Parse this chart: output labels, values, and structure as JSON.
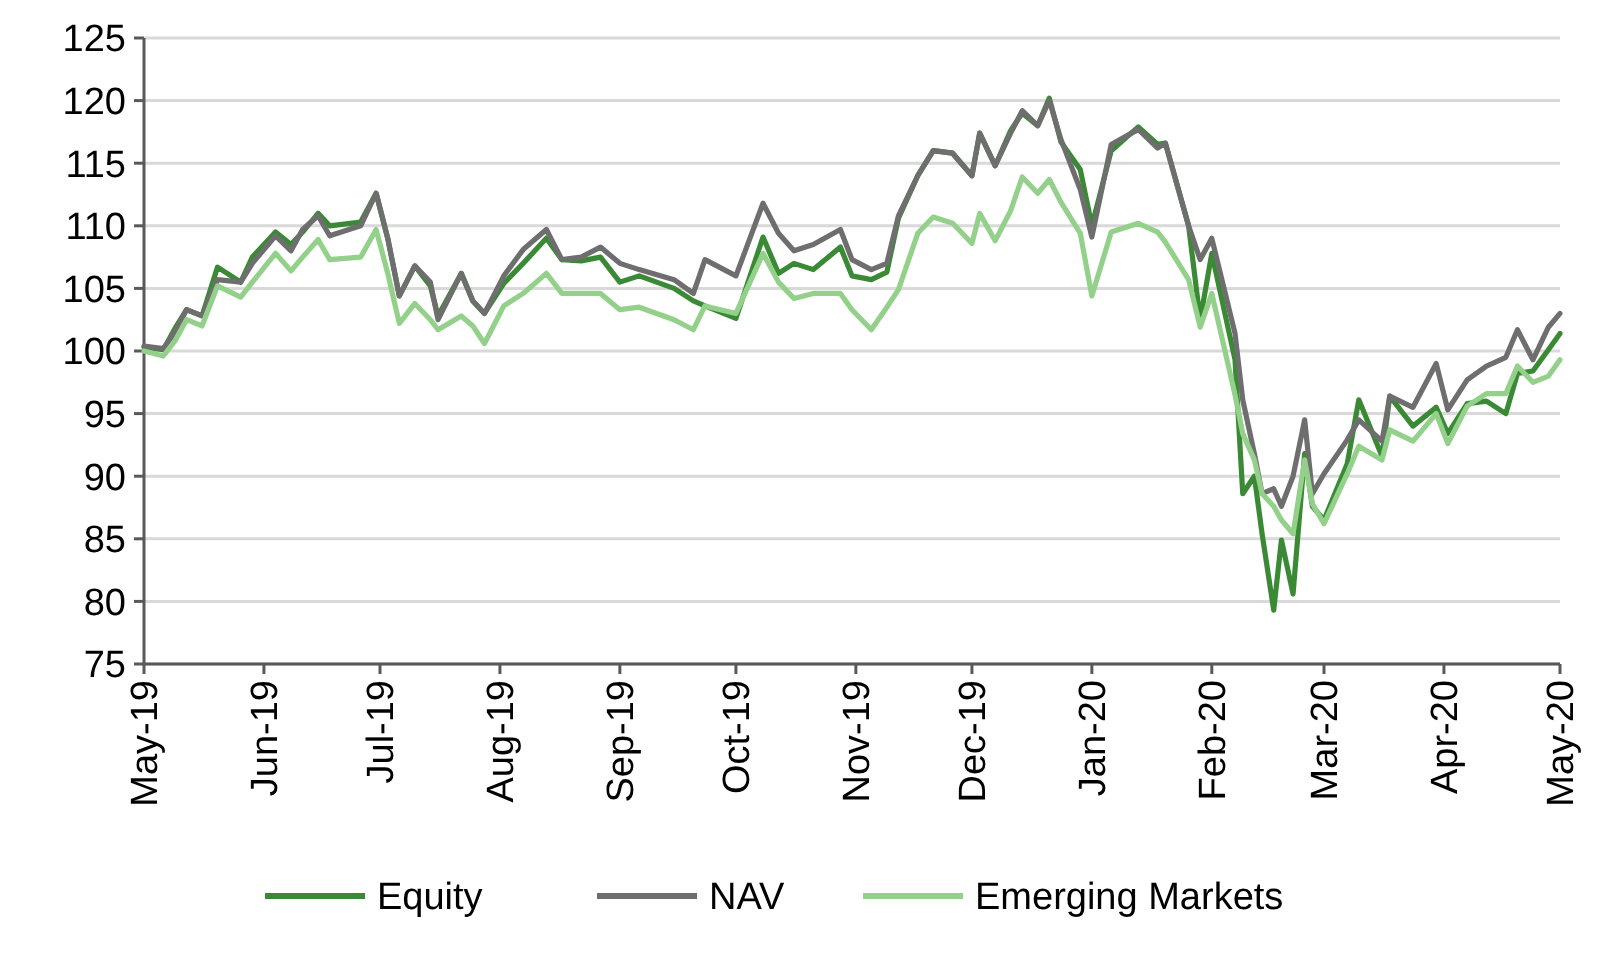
{
  "chart_data": {
    "type": "line",
    "x": [
      "2019-05-01",
      "2019-05-06",
      "2019-05-09",
      "2019-05-12",
      "2019-05-16",
      "2019-05-20",
      "2019-05-26",
      "2019-05-29",
      "2019-06-04",
      "2019-06-08",
      "2019-06-11",
      "2019-06-15",
      "2019-06-18",
      "2019-06-26",
      "2019-06-30",
      "2019-07-03",
      "2019-07-06",
      "2019-07-10",
      "2019-07-14",
      "2019-07-16",
      "2019-07-22",
      "2019-07-25",
      "2019-07-28",
      "2019-08-02",
      "2019-08-07",
      "2019-08-13",
      "2019-08-17",
      "2019-08-22",
      "2019-08-27",
      "2019-09-01",
      "2019-09-06",
      "2019-09-15",
      "2019-09-20",
      "2019-09-23",
      "2019-10-01",
      "2019-10-08",
      "2019-10-12",
      "2019-10-16",
      "2019-10-21",
      "2019-10-28",
      "2019-10-31",
      "2019-11-05",
      "2019-11-09",
      "2019-11-12",
      "2019-11-17",
      "2019-11-21",
      "2019-11-26",
      "2019-12-01",
      "2019-12-03",
      "2019-12-07",
      "2019-12-11",
      "2019-12-14",
      "2019-12-18",
      "2019-12-21",
      "2019-12-24",
      "2019-12-29",
      "2020-01-01",
      "2020-01-06",
      "2020-01-13",
      "2020-01-18",
      "2020-01-20",
      "2020-01-26",
      "2020-01-29",
      "2020-02-01",
      "2020-02-07",
      "2020-02-09",
      "2020-02-12",
      "2020-02-14",
      "2020-02-17",
      "2020-02-19",
      "2020-02-22",
      "2020-02-25",
      "2020-02-27",
      "2020-03-01",
      "2020-03-07",
      "2020-03-10",
      "2020-03-16",
      "2020-03-18",
      "2020-03-24",
      "2020-03-30",
      "2020-04-02",
      "2020-04-07",
      "2020-04-12",
      "2020-04-17",
      "2020-04-20",
      "2020-04-24",
      "2020-04-28",
      "2020-05-01"
    ],
    "series": [
      {
        "name": "Equity",
        "color": "#3a8a35",
        "values": [
          100.3,
          100.1,
          101.8,
          103.3,
          102.8,
          106.7,
          105.5,
          107.5,
          109.5,
          108.5,
          109.5,
          111,
          110,
          110.3,
          112.6,
          109,
          104.4,
          106.8,
          105.2,
          102.8,
          106.2,
          104,
          103,
          105.4,
          107,
          109,
          107.3,
          107.2,
          107.5,
          105.5,
          106,
          105,
          104,
          103.6,
          102.6,
          109.1,
          106.2,
          107,
          106.5,
          108.3,
          106,
          105.7,
          106.3,
          110.6,
          114,
          116,
          115.8,
          114,
          117.4,
          114.8,
          117.6,
          119,
          118,
          120.2,
          116.7,
          114.5,
          110,
          116,
          117.9,
          116.5,
          116.6,
          110,
          102.5,
          107.8,
          99.3,
          88.6,
          90,
          85.4,
          79.3,
          84.9,
          80.6,
          91.8,
          87.6,
          86.5,
          91,
          96.1,
          91.6,
          96.4,
          94,
          95.5,
          93.4,
          95.8,
          96,
          95,
          98.2,
          98.4,
          100.1,
          101.4
        ]
      },
      {
        "name": "NAV",
        "color": "#6e6e6e",
        "values": [
          100.4,
          100.2,
          101.5,
          103.3,
          102.8,
          105.7,
          105.5,
          107,
          109.2,
          108,
          109.7,
          110.8,
          109.2,
          110,
          112.6,
          109,
          104.4,
          106.8,
          105.5,
          102.5,
          106.2,
          104,
          103,
          106,
          108.1,
          109.7,
          107.3,
          107.5,
          108.3,
          107,
          106.5,
          105.7,
          104.6,
          107.3,
          106,
          111.8,
          109.4,
          108,
          108.5,
          109.7,
          107.3,
          106.5,
          107,
          110.8,
          114,
          116,
          115.8,
          114,
          117.4,
          114.8,
          117.4,
          119.2,
          118,
          120,
          116.9,
          112.9,
          109.1,
          116.5,
          117.7,
          116.2,
          116.6,
          110,
          107.3,
          109,
          101.4,
          96.1,
          91.8,
          88.6,
          89,
          87.6,
          90,
          94.5,
          88.6,
          90.2,
          92.9,
          94.5,
          92.8,
          96.4,
          95.5,
          99,
          95.3,
          97.7,
          98.8,
          99.5,
          101.7,
          99.3,
          101.9,
          103
        ]
      },
      {
        "name": "Emerging Markets",
        "color": "#93d18a",
        "values": [
          100,
          99.6,
          100.8,
          102.5,
          102,
          105.2,
          104.3,
          105.5,
          107.8,
          106.4,
          107.5,
          108.9,
          107.3,
          107.5,
          109.7,
          106.2,
          102.2,
          103.8,
          102.5,
          101.7,
          102.8,
          102,
          100.6,
          103.6,
          104.6,
          106.2,
          104.6,
          104.6,
          104.6,
          103.3,
          103.5,
          102.5,
          101.7,
          103.6,
          103,
          107.8,
          105.5,
          104.2,
          104.6,
          104.6,
          103.3,
          101.7,
          103.5,
          104.9,
          109.4,
          110.7,
          110.2,
          108.6,
          111,
          108.8,
          111.2,
          113.9,
          112.6,
          113.7,
          111.9,
          109.4,
          104.4,
          109.5,
          110.2,
          109.5,
          108.7,
          105.7,
          101.9,
          104.6,
          96.5,
          93.4,
          91.3,
          88.6,
          87.6,
          86.5,
          85.4,
          91.3,
          87.8,
          86.2,
          90.2,
          92.4,
          91.3,
          93.7,
          92.8,
          95,
          92.6,
          95.6,
          96.6,
          96.6,
          98.8,
          97.5,
          98,
          99.3
        ]
      }
    ],
    "xlim": [
      "2019-05-01",
      "2020-05-01"
    ],
    "xticks": [
      {
        "value": "2019-05-01",
        "label": "May-19"
      },
      {
        "value": "2019-06-01",
        "label": "Jun-19"
      },
      {
        "value": "2019-07-01",
        "label": "Jul-19"
      },
      {
        "value": "2019-08-01",
        "label": "Aug-19"
      },
      {
        "value": "2019-09-01",
        "label": "Sep-19"
      },
      {
        "value": "2019-10-01",
        "label": "Oct-19"
      },
      {
        "value": "2019-11-01",
        "label": "Nov-19"
      },
      {
        "value": "2019-12-01",
        "label": "Dec-19"
      },
      {
        "value": "2020-01-01",
        "label": "Jan-20"
      },
      {
        "value": "2020-02-01",
        "label": "Feb-20"
      },
      {
        "value": "2020-03-01",
        "label": "Mar-20"
      },
      {
        "value": "2020-04-01",
        "label": "Apr-20"
      },
      {
        "value": "2020-05-01",
        "label": "May-20"
      }
    ],
    "ylim": [
      75,
      125
    ],
    "yticks": [
      75,
      80,
      85,
      90,
      95,
      100,
      105,
      110,
      115,
      120,
      125
    ],
    "grid": "y",
    "legend": "bottom",
    "marker": "none",
    "line_style": "solid"
  }
}
